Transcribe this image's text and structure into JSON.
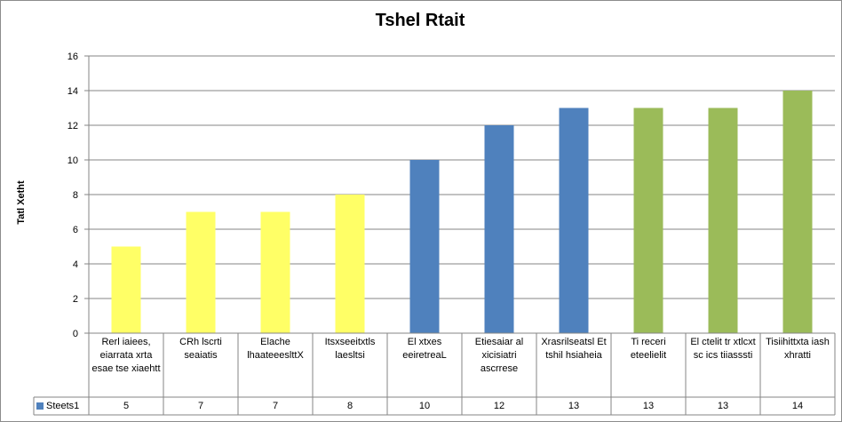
{
  "chart_data": {
    "type": "bar",
    "title": "Tshel Rtait",
    "ylabel": "Tatl Xetht",
    "xlabel": "",
    "ylim": [
      0,
      16
    ],
    "yticks": [
      0,
      2,
      4,
      6,
      8,
      10,
      12,
      14,
      16
    ],
    "grid": true,
    "legend": "data-table",
    "categories": [
      "Rerl iaiees, eiarrata xrta esae tse xiaehtt",
      "CRh lscrti seaiatis",
      "Elache lhaateeeslttX",
      "Itsxseeitxtls laesltsi",
      "El xtxes eeiretreaL",
      "Etiesaiar al xicisiatri ascrrese",
      "Xrasrilseatsl Et tshil hsiaheia",
      "Ti receri eteelielit",
      "El ctelit tr xtlcxt sc ics tiiasssti",
      "Tisiihittxta iash xhratti"
    ],
    "series": [
      {
        "name": "Steets1",
        "values": [
          5,
          7,
          7,
          8,
          10,
          12,
          13,
          13,
          13,
          14
        ]
      }
    ],
    "bar_colors": [
      "#ffff66",
      "#ffff66",
      "#ffff66",
      "#ffff66",
      "#4f81bd",
      "#4f81bd",
      "#4f81bd",
      "#9bbb59",
      "#9bbb59",
      "#9bbb59"
    ],
    "legend_color": "#4f81bd"
  }
}
